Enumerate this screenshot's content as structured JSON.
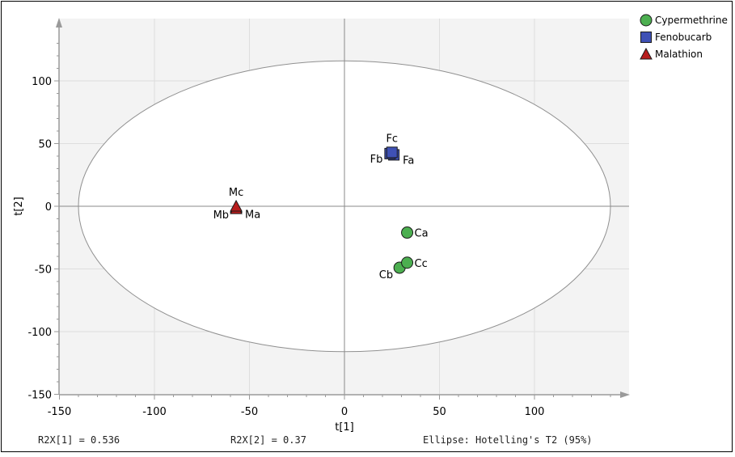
{
  "chart_data": {
    "type": "scatter",
    "xlabel": "t[1]",
    "ylabel": "t[2]",
    "xlim": [
      -150,
      150
    ],
    "ylim": [
      -150,
      150
    ],
    "xticks": [
      -150,
      -100,
      -50,
      0,
      50,
      100
    ],
    "yticks": [
      100,
      50,
      0,
      -50,
      -100,
      -150
    ],
    "grid": true,
    "legend_position": "top-right",
    "ellipse": {
      "a": 140,
      "b": 116,
      "label": "Ellipse: Hotelling's T2 (95%)"
    },
    "series": [
      {
        "name": "Cypermethrine",
        "color": "#4caf50",
        "marker": "circle",
        "points": [
          {
            "label": "Ca",
            "x": 33,
            "y": -21
          },
          {
            "label": "Cb",
            "x": 29,
            "y": -49
          },
          {
            "label": "Cc",
            "x": 33,
            "y": -45
          }
        ]
      },
      {
        "name": "Fenobucarb",
        "color": "#3f51b5",
        "marker": "square",
        "points": [
          {
            "label": "Fa",
            "x": 26,
            "y": 41
          },
          {
            "label": "Fb",
            "x": 24,
            "y": 42
          },
          {
            "label": "Fc",
            "x": 25,
            "y": 43
          }
        ]
      },
      {
        "name": "Malathion",
        "color": "#b71c1c",
        "marker": "triangle",
        "points": [
          {
            "label": "Ma",
            "x": -57,
            "y": -1
          },
          {
            "label": "Mb",
            "x": -57,
            "y": -2
          },
          {
            "label": "Mc",
            "x": -57,
            "y": 0
          }
        ]
      }
    ]
  },
  "footer": {
    "r2x1": "R2X[1] = 0.536",
    "r2x2": "R2X[2] = 0.37",
    "ellipse_label": "Ellipse: Hotelling's T2 (95%)"
  }
}
